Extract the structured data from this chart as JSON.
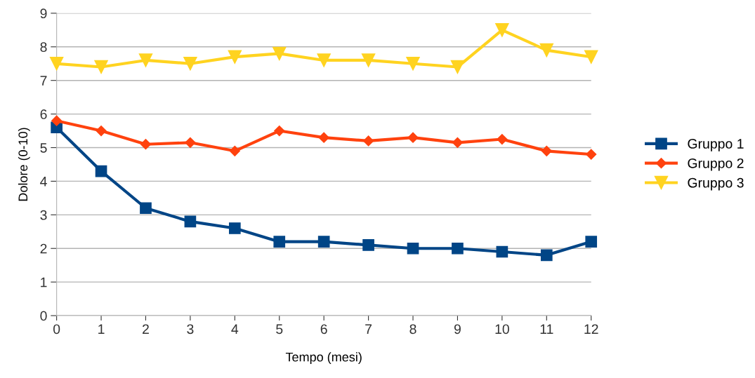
{
  "chart_data": {
    "type": "line",
    "xlabel": "Tempo (mesi)",
    "ylabel": "Dolore (0-10)",
    "x": [
      0,
      1,
      2,
      3,
      4,
      5,
      6,
      7,
      8,
      9,
      10,
      11,
      12
    ],
    "series": [
      {
        "name": "Gruppo 1",
        "color": "#004586",
        "marker": "square",
        "values": [
          5.6,
          4.3,
          3.2,
          2.8,
          2.6,
          2.2,
          2.2,
          2.1,
          2.0,
          2.0,
          1.9,
          1.8,
          2.2
        ]
      },
      {
        "name": "Gruppo 2",
        "color": "#ff420e",
        "marker": "diamond",
        "values": [
          5.8,
          5.5,
          5.1,
          5.15,
          4.9,
          5.5,
          5.3,
          5.2,
          5.3,
          5.15,
          5.25,
          4.9,
          4.8
        ]
      },
      {
        "name": "Gruppo 3",
        "color": "#ffd320",
        "marker": "triangle",
        "values": [
          7.5,
          7.4,
          7.6,
          7.5,
          7.7,
          7.8,
          7.6,
          7.6,
          7.5,
          7.4,
          8.5,
          7.9,
          7.7
        ]
      }
    ],
    "xlim": [
      0,
      12
    ],
    "xticks": [
      0,
      1,
      2,
      3,
      4,
      5,
      6,
      7,
      8,
      9,
      10,
      11,
      12
    ],
    "ylim": [
      0,
      9
    ],
    "yticks": [
      0,
      1,
      2,
      3,
      4,
      5,
      6,
      7,
      8,
      9
    ],
    "grid": "y",
    "legend": "right",
    "line_style": "solid"
  }
}
